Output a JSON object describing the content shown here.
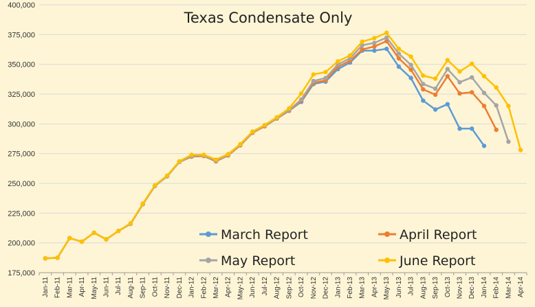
{
  "chart_data": {
    "type": "line",
    "title": "Texas Condensate Only",
    "xlabel": "",
    "ylabel": "",
    "ylim": [
      175000,
      400000
    ],
    "yticks": [
      175000,
      200000,
      225000,
      250000,
      275000,
      300000,
      325000,
      350000,
      375000,
      400000
    ],
    "ytick_labels": [
      "175,000",
      "200,000",
      "225,000",
      "250,000",
      "275,000",
      "300,000",
      "325,000",
      "350,000",
      "375,000",
      "400,000"
    ],
    "grid": true,
    "legend_position": "bottom-right",
    "categories": [
      "Jan-11",
      "Feb-11",
      "Mar-11",
      "Apr-11",
      "May-11",
      "Jun-11",
      "Jul-11",
      "Aug-11",
      "Sep-11",
      "Oct-11",
      "Nov-11",
      "Dec-11",
      "Jan-12",
      "Feb-12",
      "Mar-12",
      "Apr-12",
      "May-12",
      "Jun-12",
      "Jul-12",
      "Aug-12",
      "Sep-12",
      "Oct-12",
      "Nov-12",
      "Dec-12",
      "Jan-13",
      "Feb-13",
      "Mar-13",
      "Apr-13",
      "May-13",
      "Jun-13",
      "Jul-13",
      "Aug-13",
      "Sep-13",
      "Oct-13",
      "Nov-13",
      "Dec-13",
      "Jan-14",
      "Feb-14",
      "Mar-14",
      "Apr-14"
    ],
    "series": [
      {
        "name": "March Report",
        "color": "#5b9bd5",
        "values": [
          187000,
          187500,
          204000,
          201000,
          208500,
          203000,
          210000,
          216000,
          232500,
          248000,
          256000,
          268000,
          272500,
          273000,
          268500,
          273500,
          282000,
          292500,
          298000,
          304500,
          311000,
          318500,
          333500,
          335500,
          346000,
          351500,
          361500,
          361500,
          363000,
          348000,
          338500,
          319500,
          312000,
          316500,
          296000,
          296000,
          281500,
          null,
          null,
          null
        ]
      },
      {
        "name": "April Report",
        "color": "#ed7d31",
        "values": [
          187000,
          187500,
          204000,
          201000,
          208500,
          203000,
          210000,
          216000,
          232500,
          248000,
          256000,
          268000,
          272500,
          273000,
          268500,
          273500,
          282000,
          292500,
          298000,
          304500,
          311000,
          319500,
          334500,
          336500,
          348000,
          353000,
          362500,
          365000,
          369500,
          355000,
          345500,
          329000,
          324500,
          340000,
          325500,
          326500,
          315000,
          295000,
          null,
          null
        ]
      },
      {
        "name": "May Report",
        "color": "#a5a5a5",
        "values": [
          187000,
          187500,
          204000,
          201000,
          208500,
          203000,
          210000,
          216000,
          232500,
          248000,
          256000,
          268000,
          273000,
          273500,
          269000,
          274000,
          282500,
          293000,
          298500,
          305000,
          311500,
          320500,
          336000,
          338500,
          350000,
          355000,
          366000,
          368000,
          372500,
          359000,
          349500,
          333500,
          329500,
          346000,
          335000,
          339000,
          326000,
          315500,
          285000,
          null
        ]
      },
      {
        "name": "June Report",
        "color": "#ffc000",
        "values": [
          187000,
          187500,
          204000,
          201000,
          208500,
          203000,
          210000,
          216500,
          233000,
          248500,
          256500,
          268500,
          274000,
          274000,
          270000,
          274500,
          283000,
          293500,
          299000,
          305500,
          313000,
          325500,
          341500,
          343500,
          352500,
          357500,
          369000,
          372000,
          376500,
          363000,
          356500,
          340500,
          338000,
          353500,
          344000,
          350500,
          340000,
          330500,
          315000,
          278000
        ]
      }
    ]
  }
}
